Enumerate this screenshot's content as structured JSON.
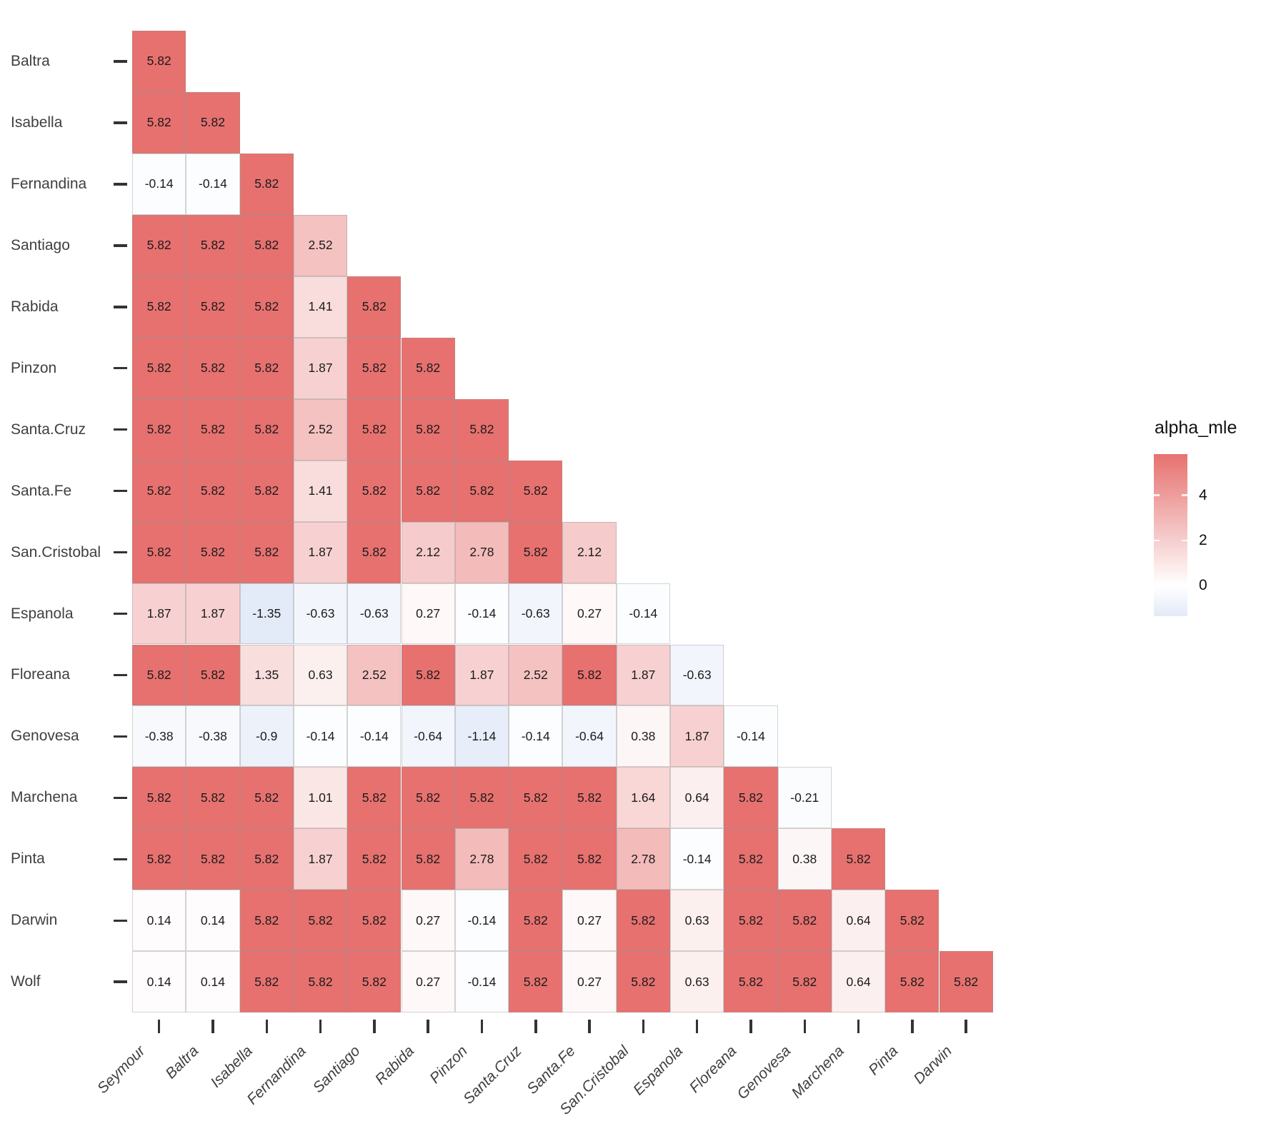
{
  "chart_data": {
    "type": "heatmap",
    "title": "",
    "shape": "lower-triangular",
    "legend": {
      "title": "alpha_mle",
      "position": "right",
      "ticks": [
        4,
        2,
        0
      ],
      "range": [
        -1.35,
        5.82
      ]
    },
    "colors": {
      "high": "#E6716F",
      "mid": "#FFFFFF",
      "low_end": "#E3EAF8",
      "grid_border": "rgba(150,150,150,0.40)",
      "tick": "#333333",
      "axis_text": "#3F3F3F",
      "cell_text": "#1B1B1B"
    },
    "rows": [
      "Baltra",
      "Isabella",
      "Fernandina",
      "Santiago",
      "Rabida",
      "Pinzon",
      "Santa.Cruz",
      "Santa.Fe",
      "San.Cristobal",
      "Espanola",
      "Floreana",
      "Genovesa",
      "Marchena",
      "Pinta",
      "Darwin",
      "Wolf"
    ],
    "cols": [
      "Seymour",
      "Baltra",
      "Isabella",
      "Fernandina",
      "Santiago",
      "Rabida",
      "Pinzon",
      "Santa.Cruz",
      "Santa.Fe",
      "San.Cristobal",
      "Espanola",
      "Floreana",
      "Genovesa",
      "Marchena",
      "Pinta",
      "Darwin"
    ],
    "values": [
      [
        "5.82"
      ],
      [
        "5.82",
        "5.82"
      ],
      [
        "-0.14",
        "-0.14",
        "5.82"
      ],
      [
        "5.82",
        "5.82",
        "5.82",
        "2.52"
      ],
      [
        "5.82",
        "5.82",
        "5.82",
        "1.41",
        "5.82"
      ],
      [
        "5.82",
        "5.82",
        "5.82",
        "1.87",
        "5.82",
        "5.82"
      ],
      [
        "5.82",
        "5.82",
        "5.82",
        "2.52",
        "5.82",
        "5.82",
        "5.82"
      ],
      [
        "5.82",
        "5.82",
        "5.82",
        "1.41",
        "5.82",
        "5.82",
        "5.82",
        "5.82"
      ],
      [
        "5.82",
        "5.82",
        "5.82",
        "1.87",
        "5.82",
        "2.12",
        "2.78",
        "5.82",
        "2.12"
      ],
      [
        "1.87",
        "1.87",
        "-1.35",
        "-0.63",
        "-0.63",
        "0.27",
        "-0.14",
        "-0.63",
        "0.27",
        "-0.14"
      ],
      [
        "5.82",
        "5.82",
        "1.35",
        "0.63",
        "2.52",
        "5.82",
        "1.87",
        "2.52",
        "5.82",
        "1.87",
        "-0.63"
      ],
      [
        "-0.38",
        "-0.38",
        "-0.9",
        "-0.14",
        "-0.14",
        "-0.64",
        "-1.14",
        "-0.14",
        "-0.64",
        "0.38",
        "1.87",
        "-0.14"
      ],
      [
        "5.82",
        "5.82",
        "5.82",
        "1.01",
        "5.82",
        "5.82",
        "5.82",
        "5.82",
        "5.82",
        "1.64",
        "0.64",
        "5.82",
        "-0.21"
      ],
      [
        "5.82",
        "5.82",
        "5.82",
        "1.87",
        "5.82",
        "5.82",
        "2.78",
        "5.82",
        "5.82",
        "2.78",
        "-0.14",
        "5.82",
        "0.38",
        "5.82"
      ],
      [
        "0.14",
        "0.14",
        "5.82",
        "5.82",
        "5.82",
        "0.27",
        "-0.14",
        "5.82",
        "0.27",
        "5.82",
        "0.63",
        "5.82",
        "5.82",
        "0.64",
        "5.82"
      ],
      [
        "0.14",
        "0.14",
        "5.82",
        "5.82",
        "5.82",
        "0.27",
        "-0.14",
        "5.82",
        "0.27",
        "5.82",
        "0.63",
        "5.82",
        "5.82",
        "0.64",
        "5.82",
        "5.82"
      ]
    ]
  }
}
